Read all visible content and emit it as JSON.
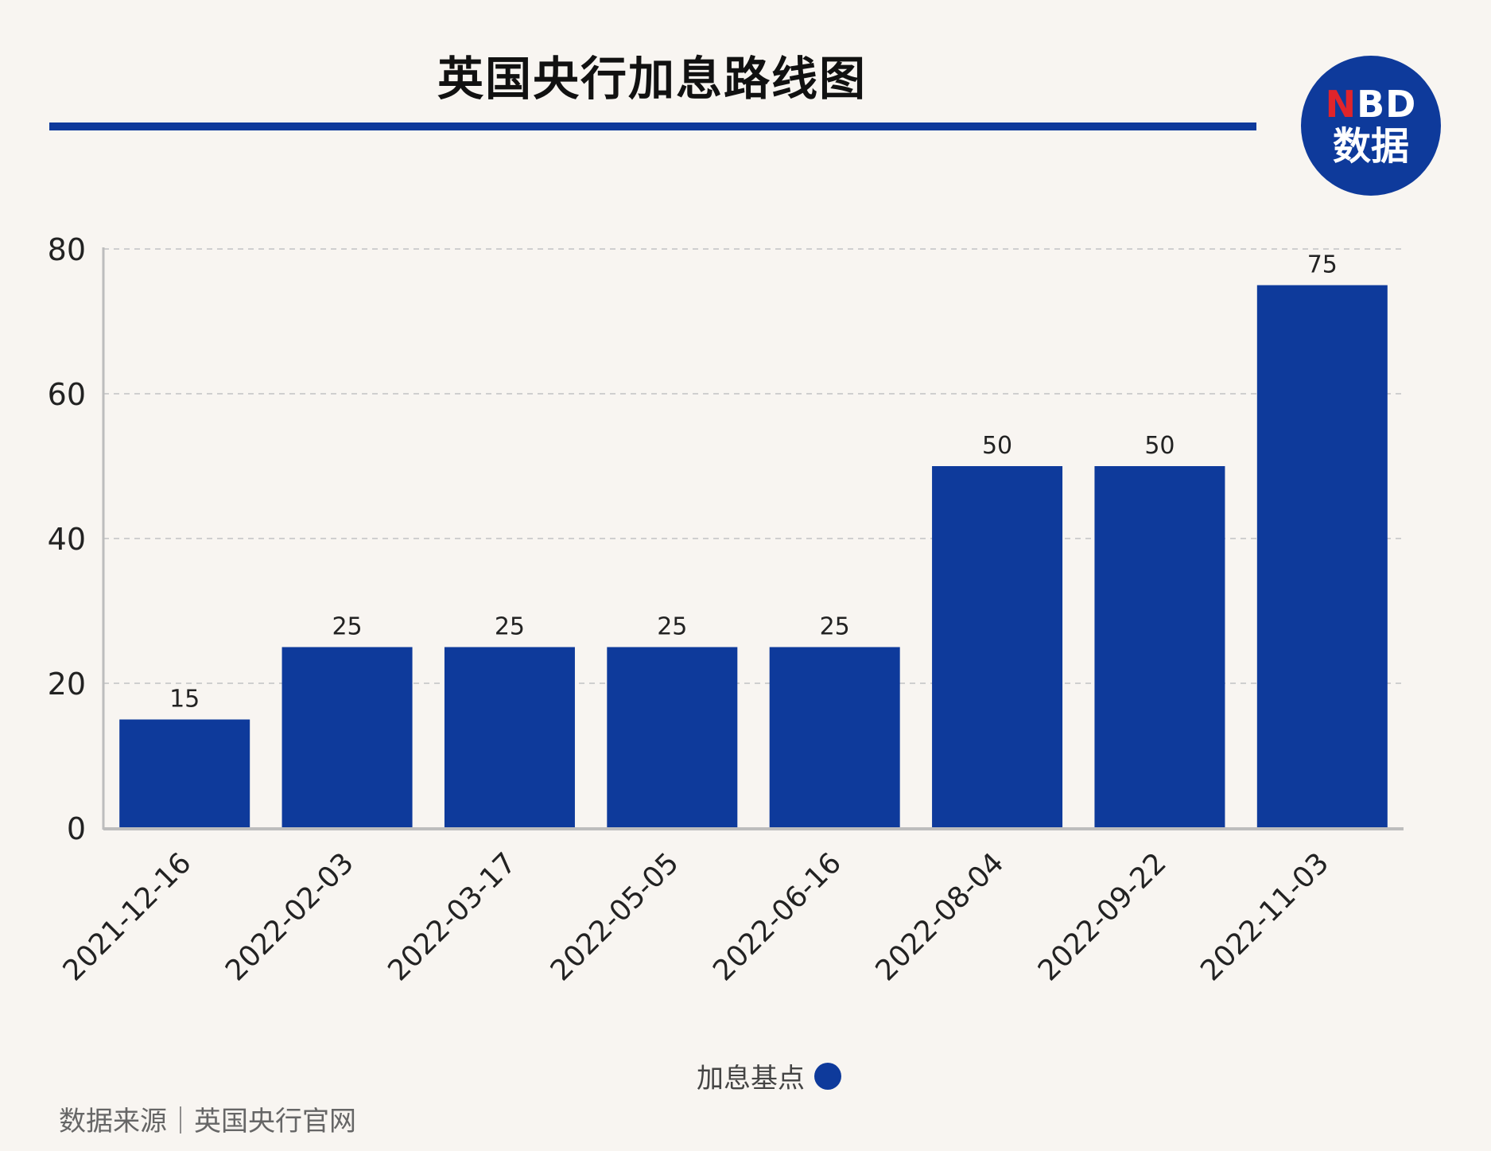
{
  "header": {
    "title": "英国央行加息路线图",
    "logo_top_prefix": "N",
    "logo_top_rest": "BD",
    "logo_bottom": "数据"
  },
  "colors": {
    "bar": "#0e3a9b",
    "accent_rule": "#0e3a9b",
    "logo_red": "#e0242b",
    "grid": "#cfcfcf",
    "axis": "#bdbdbd",
    "background": "#f8f5f1"
  },
  "legend": {
    "label": "加息基点",
    "placement": "bottom-center"
  },
  "footer": {
    "source": "数据来源｜英国央行官网"
  },
  "chart_data": {
    "type": "bar",
    "categories": [
      "2021-12-16",
      "2022-02-03",
      "2022-03-17",
      "2022-05-05",
      "2022-06-16",
      "2022-08-04",
      "2022-09-22",
      "2022-11-03"
    ],
    "series": [
      {
        "name": "加息基点",
        "values": [
          15,
          25,
          25,
          25,
          25,
          50,
          50,
          75
        ]
      }
    ],
    "title": "英国央行加息路线图",
    "xlabel": "",
    "ylabel": "",
    "ylim": [
      0,
      80
    ],
    "yticks": [
      0,
      20,
      40,
      60,
      80
    ],
    "grid": true,
    "data_labels": true
  }
}
